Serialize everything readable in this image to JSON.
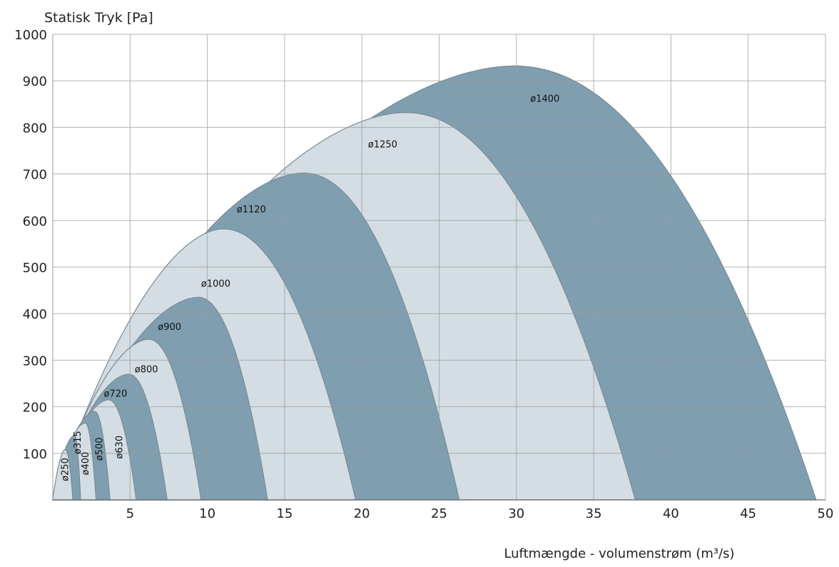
{
  "chart_data": {
    "type": "area",
    "title": "",
    "ylabel": "Statisk Tryk [Pa]",
    "xlabel": "Luftmængde - volumenstrøm (m³/s)",
    "xlim": [
      0,
      50
    ],
    "ylim": [
      0,
      1000
    ],
    "x_ticks": [
      5,
      10,
      15,
      20,
      25,
      30,
      35,
      40,
      45,
      50
    ],
    "y_ticks": [
      100,
      200,
      300,
      400,
      500,
      600,
      700,
      800,
      900,
      1000
    ],
    "grid": true,
    "colors": {
      "dark": "#7f9fb0",
      "light": "#d3dde3",
      "edge": "#7a8a94"
    },
    "series": [
      {
        "name": "ø1400",
        "x_max": 49.4,
        "peak_x": 29.8,
        "peak_y": 932,
        "y_at_x0": 2,
        "shade": "dark"
      },
      {
        "name": "ø1250",
        "x_max": 37.7,
        "peak_x": 22.8,
        "peak_y": 832,
        "y_at_x0": 2,
        "shade": "light"
      },
      {
        "name": "ø1120",
        "x_max": 26.3,
        "peak_x": 16.2,
        "peak_y": 702,
        "y_at_x0": 2,
        "shade": "dark"
      },
      {
        "name": "ø1000",
        "x_max": 19.6,
        "peak_x": 11.0,
        "peak_y": 582,
        "y_at_x0": 2,
        "shade": "light"
      },
      {
        "name": "ø900",
        "x_max": 13.9,
        "peak_x": 9.4,
        "peak_y": 435,
        "y_at_x0": 2,
        "shade": "dark"
      },
      {
        "name": "ø800",
        "x_max": 9.6,
        "peak_x": 6.2,
        "peak_y": 345,
        "y_at_x0": 2,
        "shade": "light"
      },
      {
        "name": "ø720",
        "x_max": 7.4,
        "peak_x": 4.9,
        "peak_y": 270,
        "y_at_x0": 2,
        "shade": "dark"
      },
      {
        "name": "ø630",
        "x_max": 5.4,
        "peak_x": 3.6,
        "peak_y": 215,
        "y_at_x0": 2,
        "shade": "light"
      },
      {
        "name": "ø500",
        "x_max": 3.7,
        "peak_x": 2.7,
        "peak_y": 190,
        "y_at_x0": 2,
        "shade": "dark"
      },
      {
        "name": "ø400",
        "x_max": 2.8,
        "peak_x": 2.1,
        "peak_y": 165,
        "y_at_x0": 2,
        "shade": "light"
      },
      {
        "name": "ø315",
        "x_max": 1.8,
        "peak_x": 1.4,
        "peak_y": 138,
        "y_at_x0": 2,
        "shade": "dark"
      },
      {
        "name": "ø250",
        "x_max": 1.3,
        "peak_x": 0.8,
        "peak_y": 108,
        "y_at_x0": 2,
        "shade": "light"
      }
    ],
    "region_labels": [
      {
        "text": "ø1400",
        "x": 30.9,
        "y": 855,
        "rotate": 0
      },
      {
        "text": "ø1250",
        "x": 20.4,
        "y": 757,
        "rotate": 0
      },
      {
        "text": "ø1120",
        "x": 11.9,
        "y": 617,
        "rotate": 0
      },
      {
        "text": "ø1000",
        "x": 9.6,
        "y": 458,
        "rotate": 0
      },
      {
        "text": "ø900",
        "x": 6.8,
        "y": 365,
        "rotate": 0
      },
      {
        "text": "ø800",
        "x": 5.3,
        "y": 274,
        "rotate": 0
      },
      {
        "text": "ø720",
        "x": 3.3,
        "y": 222,
        "rotate": 0
      },
      {
        "text": "ø630",
        "x": 4.5,
        "y": 88,
        "rotate": -90
      },
      {
        "text": "ø500",
        "x": 3.2,
        "y": 84,
        "rotate": -90
      },
      {
        "text": "ø400",
        "x": 2.3,
        "y": 53,
        "rotate": -90
      },
      {
        "text": "ø315",
        "x": 1.8,
        "y": 98,
        "rotate": -90
      },
      {
        "text": "ø250",
        "x": 1.0,
        "y": 40,
        "rotate": -90
      }
    ]
  }
}
